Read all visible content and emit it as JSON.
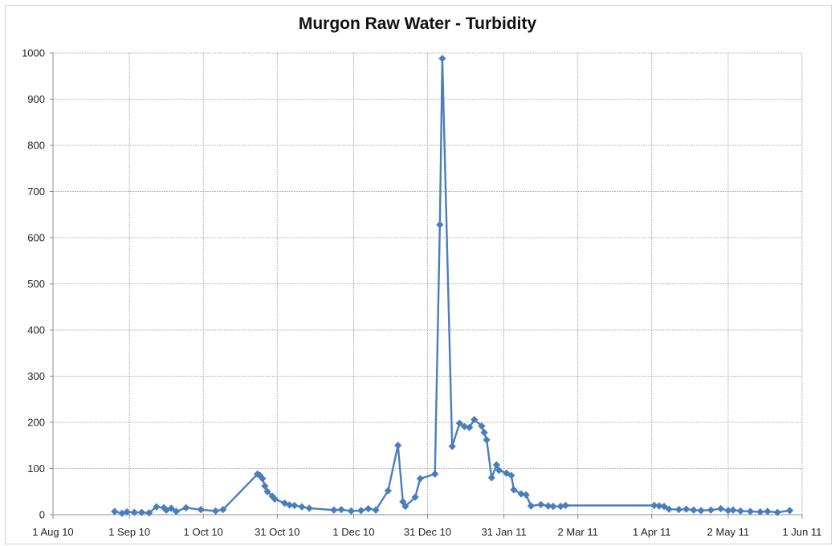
{
  "chart_data": {
    "type": "line",
    "title": "Murgon Raw Water - Turbidity",
    "xlabel": "",
    "ylabel": "",
    "ylim": [
      0,
      1000
    ],
    "xlim": [
      "2010-08-01",
      "2011-06-01"
    ],
    "yticks": [
      0,
      100,
      200,
      300,
      400,
      500,
      600,
      700,
      800,
      900,
      1000
    ],
    "ytick_labels": [
      "0",
      "100",
      "200",
      "300",
      "400",
      "500",
      "600",
      "700",
      "800",
      "900",
      "1000"
    ],
    "xticks": [
      "2010-08-01",
      "2010-09-01",
      "2010-10-01",
      "2010-10-31",
      "2010-12-01",
      "2010-12-31",
      "2011-01-31",
      "2011-03-02",
      "2011-04-01",
      "2011-05-02",
      "2011-06-01"
    ],
    "xtick_labels": [
      "1 Aug 10",
      "1 Sep 10",
      "1 Oct 10",
      "31 Oct 10",
      "1 Dec 10",
      "31 Dec 10",
      "31 Jan 11",
      "2 Mar 11",
      "1 Apr 11",
      "2 May 11",
      "1 Jun 11"
    ],
    "grid": true,
    "colors": {
      "series": "#4a7ebb",
      "grid": "#a8a8a8",
      "axis": "#8c8c8c"
    },
    "series": [
      {
        "marker": "diamond",
        "points": [
          [
            "2010-08-26",
            7
          ],
          [
            "2010-08-29",
            3
          ],
          [
            "2010-08-31",
            6
          ],
          [
            "2010-09-03",
            5
          ],
          [
            "2010-09-06",
            5
          ],
          [
            "2010-09-09",
            4
          ],
          [
            "2010-09-12",
            17
          ],
          [
            "2010-09-15",
            15
          ],
          [
            "2010-09-16",
            10
          ],
          [
            "2010-09-18",
            14
          ],
          [
            "2010-09-20",
            7
          ],
          [
            "2010-09-24",
            15
          ],
          [
            "2010-09-30",
            11
          ],
          [
            "2010-10-06",
            8
          ],
          [
            "2010-10-09",
            11
          ],
          [
            "2010-10-23",
            88
          ],
          [
            "2010-10-24",
            85
          ],
          [
            "2010-10-25",
            78
          ],
          [
            "2010-10-26",
            62
          ],
          [
            "2010-10-27",
            50
          ],
          [
            "2010-10-29",
            40
          ],
          [
            "2010-10-30",
            34
          ],
          [
            "2010-11-03",
            25
          ],
          [
            "2010-11-05",
            21
          ],
          [
            "2010-11-07",
            20
          ],
          [
            "2010-11-10",
            17
          ],
          [
            "2010-11-13",
            14
          ],
          [
            "2010-11-23",
            10
          ],
          [
            "2010-11-26",
            11
          ],
          [
            "2010-11-30",
            8
          ],
          [
            "2010-12-04",
            9
          ],
          [
            "2010-12-07",
            13
          ],
          [
            "2010-12-10",
            10
          ],
          [
            "2010-12-15",
            52
          ],
          [
            "2010-12-19",
            150
          ],
          [
            "2010-12-21",
            28
          ],
          [
            "2010-12-22",
            18
          ],
          [
            "2010-12-26",
            38
          ],
          [
            "2010-12-28",
            78
          ],
          [
            "2011-01-03",
            88
          ],
          [
            "2011-01-05",
            628
          ],
          [
            "2011-01-06",
            988
          ],
          [
            "2011-01-10",
            148
          ],
          [
            "2011-01-13",
            198
          ],
          [
            "2011-01-15",
            191
          ],
          [
            "2011-01-17",
            189
          ],
          [
            "2011-01-19",
            206
          ],
          [
            "2011-01-22",
            192
          ],
          [
            "2011-01-23",
            178
          ],
          [
            "2011-01-24",
            162
          ],
          [
            "2011-01-26",
            80
          ],
          [
            "2011-01-28",
            108
          ],
          [
            "2011-01-29",
            96
          ],
          [
            "2011-02-01",
            90
          ],
          [
            "2011-02-03",
            85
          ],
          [
            "2011-02-04",
            54
          ],
          [
            "2011-02-07",
            45
          ],
          [
            "2011-02-09",
            43
          ],
          [
            "2011-02-11",
            19
          ],
          [
            "2011-02-15",
            22
          ],
          [
            "2011-02-18",
            19
          ],
          [
            "2011-02-20",
            18
          ],
          [
            "2011-02-23",
            18
          ],
          [
            "2011-02-25",
            20
          ],
          [
            "2011-04-02",
            20
          ],
          [
            "2011-04-04",
            19
          ],
          [
            "2011-04-06",
            18
          ],
          [
            "2011-04-08",
            12
          ],
          [
            "2011-04-12",
            11
          ],
          [
            "2011-04-15",
            12
          ],
          [
            "2011-04-18",
            10
          ],
          [
            "2011-04-21",
            9
          ],
          [
            "2011-04-25",
            10
          ],
          [
            "2011-04-29",
            13
          ],
          [
            "2011-05-02",
            9
          ],
          [
            "2011-05-04",
            10
          ],
          [
            "2011-05-07",
            8
          ],
          [
            "2011-05-11",
            7
          ],
          [
            "2011-05-15",
            6
          ],
          [
            "2011-05-18",
            7
          ],
          [
            "2011-05-22",
            5
          ],
          [
            "2011-05-27",
            9
          ]
        ]
      }
    ]
  }
}
